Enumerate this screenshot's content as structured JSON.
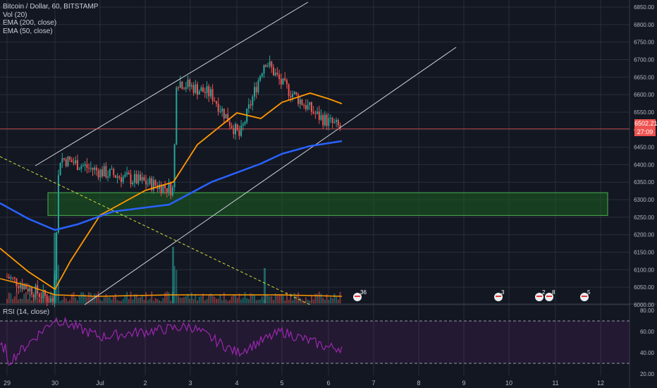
{
  "legend": {
    "title": "Bitcoin / Dollar, 60, BITSTAMP",
    "vol": "Vol (20)",
    "ema200": "EMA (200, close)",
    "ema50": "EMA (50, close)"
  },
  "rsi_label": "RSI (14, close)",
  "price_label": "6502.21",
  "countdown_label": "27:09",
  "colors": {
    "background": "#131722",
    "grid": "#2a2e39",
    "up": "#26a69a",
    "down": "#ef5350",
    "ema50": "#ff9800",
    "ema200": "#2962ff",
    "rsi": "#9c27b0",
    "zone_fill": "#1b5e20",
    "zone_stroke": "#4caf50",
    "price_line": "#ef5350",
    "channel": "#d1d4dc",
    "trendline": "#cddc39"
  },
  "event_badges": [
    "36",
    "3",
    "2",
    "8",
    "5"
  ],
  "chart_data": [
    {
      "type": "candlestick",
      "title": "Bitcoin / Dollar, 60, BITSTAMP",
      "x_ticks": [
        "29",
        "30",
        "Jul",
        "2",
        "3",
        "4",
        "5",
        "6",
        "7",
        "8",
        "9",
        "10",
        "11",
        "12"
      ],
      "y_ticks": [
        6000,
        6050,
        6100,
        6150,
        6200,
        6250,
        6300,
        6350,
        6400,
        6450,
        6500,
        6550,
        6600,
        6650,
        6700,
        6750,
        6800,
        6850
      ],
      "ylim": [
        5975,
        6870
      ],
      "last_price": 6502.21,
      "key_points_close": [
        {
          "x": "29",
          "y": 6080
        },
        {
          "x": "30",
          "y": 6010
        },
        {
          "x": "30",
          "y": 6420
        },
        {
          "x": "Jul",
          "y": 6380
        },
        {
          "x": "2",
          "y": 6330
        },
        {
          "x": "2",
          "y": 6640
        },
        {
          "x": "3",
          "y": 6600
        },
        {
          "x": "4",
          "y": 6480
        },
        {
          "x": "4",
          "y": 6700
        },
        {
          "x": "5",
          "y": 6630
        },
        {
          "x": "6",
          "y": 6540
        },
        {
          "x": "6",
          "y": 6502
        }
      ],
      "ema50": [
        {
          "x": "29",
          "y": 6130
        },
        {
          "x": "30",
          "y": 6020
        },
        {
          "x": "Jul",
          "y": 6240
        },
        {
          "x": "2",
          "y": 6300
        },
        {
          "x": "3",
          "y": 6500
        },
        {
          "x": "4",
          "y": 6520
        },
        {
          "x": "5",
          "y": 6590
        },
        {
          "x": "6",
          "y": 6560
        }
      ],
      "ema200": [
        {
          "x": "29",
          "y": 6250
        },
        {
          "x": "30",
          "y": 6185
        },
        {
          "x": "Jul",
          "y": 6225
        },
        {
          "x": "2",
          "y": 6255
        },
        {
          "x": "3",
          "y": 6320
        },
        {
          "x": "4",
          "y": 6380
        },
        {
          "x": "5",
          "y": 6420
        },
        {
          "x": "6",
          "y": 6445
        }
      ],
      "support_zone": [
        6255,
        6320
      ]
    },
    {
      "type": "line",
      "title": "RSI (14, close)",
      "y_ticks": [
        20,
        40,
        60,
        80
      ],
      "ylim": [
        15,
        85
      ],
      "bands": [
        30,
        70
      ],
      "points": [
        {
          "x": "29",
          "y": 30
        },
        {
          "x": "30",
          "y": 72
        },
        {
          "x": "Jul",
          "y": 55
        },
        {
          "x": "2",
          "y": 60
        },
        {
          "x": "3",
          "y": 65
        },
        {
          "x": "4",
          "y": 40
        },
        {
          "x": "5",
          "y": 60
        },
        {
          "x": "6",
          "y": 45
        }
      ]
    }
  ]
}
